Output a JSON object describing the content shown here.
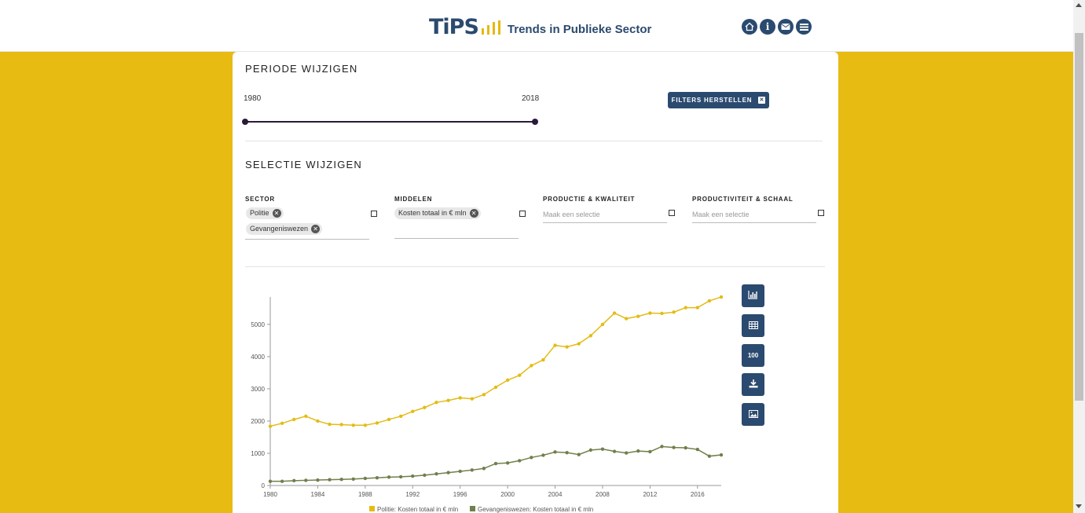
{
  "header": {
    "logo_main": "TiPS",
    "logo_text": "Trends in Publieke Sector",
    "nav_icons": [
      "home-icon",
      "info-icon",
      "mail-icon",
      "menu-icon"
    ],
    "info_glyph": "i"
  },
  "periode": {
    "title": "PERIODE WIJZIGEN",
    "start_year": "1980",
    "end_year": "2018",
    "reset_label": "FILTERS HERSTELLEN",
    "reset_glyph": "✕"
  },
  "selectie": {
    "title": "SELECTIE WIJZIGEN",
    "filters": [
      {
        "label": "SECTOR",
        "chips": [
          "Politie",
          "Gevangeniswezen"
        ],
        "placeholder": ""
      },
      {
        "label": "MIDDELEN",
        "chips": [
          "Kosten totaal in € mln"
        ],
        "placeholder": ""
      },
      {
        "label": "PRODUCTIE & KWALITEIT",
        "chips": [],
        "placeholder": "Maak een selectie"
      },
      {
        "label": "PRODUCTIVITEIT & SCHAAL",
        "chips": [],
        "placeholder": "Maak een selectie"
      }
    ],
    "chip_remove_glyph": "✕"
  },
  "tools": [
    {
      "name": "bar-chart-icon",
      "label": ""
    },
    {
      "name": "table-icon",
      "label": ""
    },
    {
      "name": "index-100-button",
      "label": "100"
    },
    {
      "name": "download-icon",
      "label": ""
    },
    {
      "name": "image-icon",
      "label": ""
    }
  ],
  "colors": {
    "accent": "#e8bb12",
    "navy": "#2b4a6f",
    "politie": "#e3bc17",
    "gevangeniswezen": "#717f4c"
  },
  "chart_data": {
    "type": "line",
    "x": [
      1980,
      1981,
      1982,
      1983,
      1984,
      1985,
      1986,
      1987,
      1988,
      1989,
      1990,
      1991,
      1992,
      1993,
      1994,
      1995,
      1996,
      1997,
      1998,
      1999,
      2000,
      2001,
      2002,
      2003,
      2004,
      2005,
      2006,
      2007,
      2008,
      2009,
      2010,
      2011,
      2012,
      2013,
      2014,
      2015,
      2016,
      2017,
      2018
    ],
    "series": [
      {
        "name": "Politie: Kosten totaal in € mln",
        "values": [
          1840,
          1930,
          2050,
          2150,
          2000,
          1900,
          1890,
          1870,
          1870,
          1940,
          2050,
          2150,
          2300,
          2420,
          2580,
          2640,
          2720,
          2690,
          2820,
          3050,
          3270,
          3420,
          3720,
          3900,
          4350,
          4300,
          4400,
          4650,
          5000,
          5350,
          5180,
          5250,
          5350,
          5340,
          5380,
          5520,
          5520,
          5730,
          5850
        ]
      },
      {
        "name": "Gevangeniswezen: Kosten totaal in € mln",
        "values": [
          130,
          130,
          150,
          160,
          170,
          180,
          190,
          200,
          220,
          240,
          260,
          270,
          290,
          320,
          360,
          400,
          440,
          480,
          530,
          680,
          700,
          770,
          870,
          940,
          1040,
          1020,
          960,
          1100,
          1130,
          1060,
          1010,
          1070,
          1050,
          1210,
          1180,
          1170,
          1120,
          910,
          950
        ]
      }
    ],
    "yticks": [
      0,
      1000,
      2000,
      3000,
      4000,
      5000
    ],
    "xticks": [
      1980,
      1984,
      1988,
      1992,
      1996,
      2000,
      2004,
      2008,
      2012,
      2016
    ],
    "ylim": [
      0,
      5900
    ],
    "legend": "bottom"
  }
}
